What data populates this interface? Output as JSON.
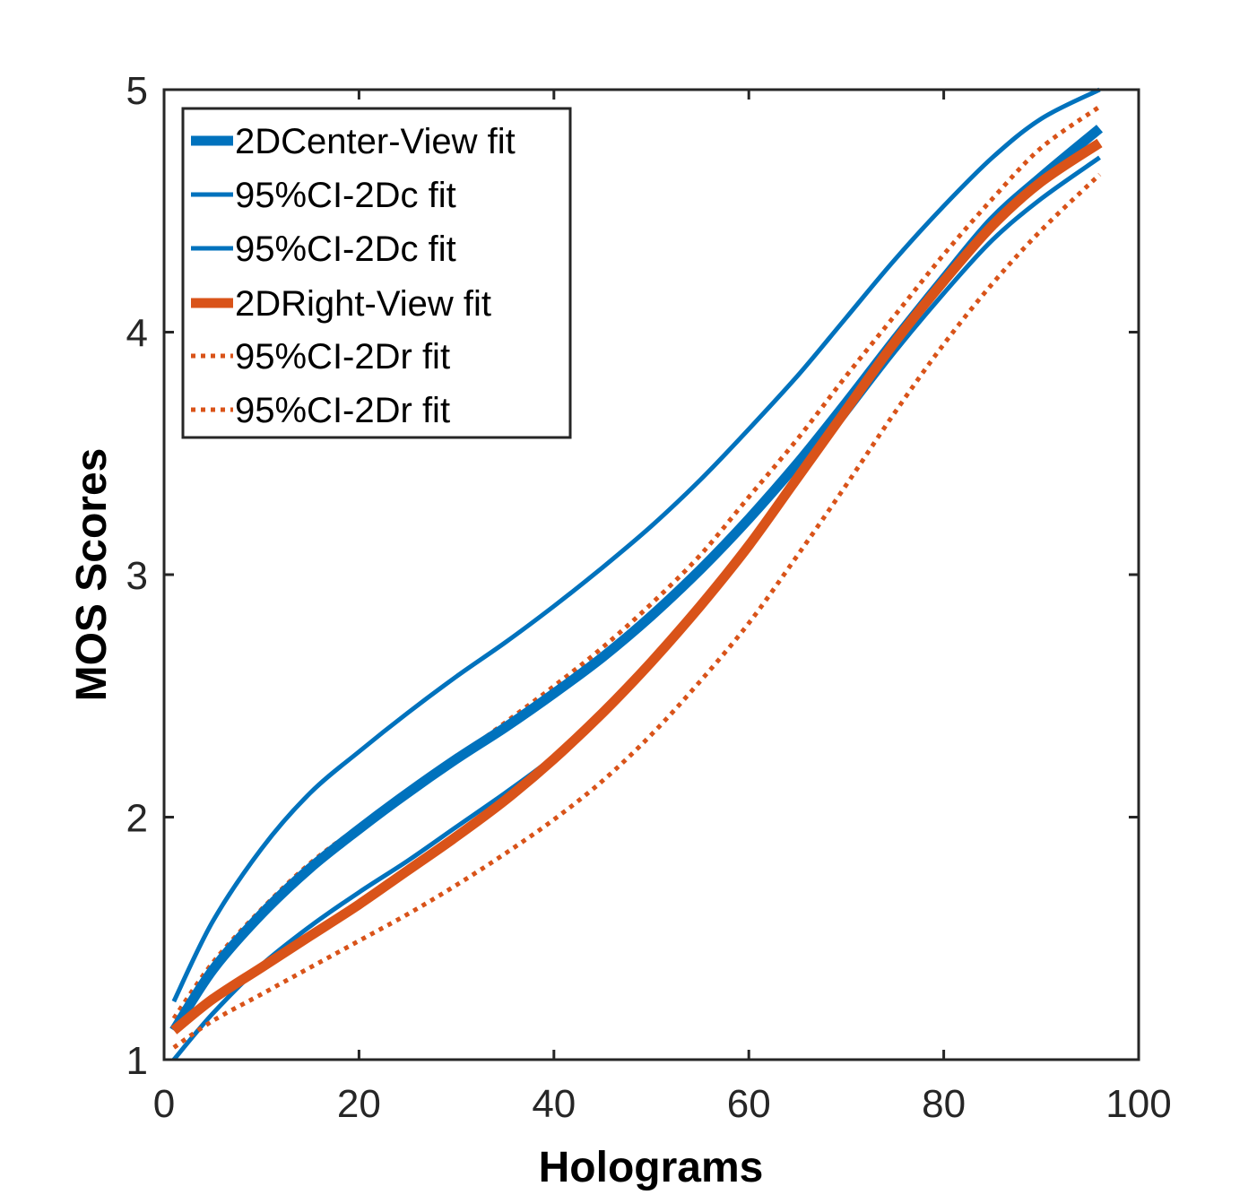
{
  "chart_data": {
    "type": "line",
    "title": "",
    "xlabel": "Holograms",
    "ylabel": "MOS Scores",
    "xlim": [
      0,
      100
    ],
    "ylim": [
      1,
      5
    ],
    "xticks": [
      0,
      20,
      40,
      60,
      80,
      100
    ],
    "yticks": [
      1,
      2,
      3,
      4,
      5
    ],
    "grid": false,
    "legend_position": "top-left",
    "series": [
      {
        "name": "2DCenter-View fit",
        "color": "#0072BD",
        "style": "solid-thick",
        "x": [
          1,
          5,
          10,
          15,
          20,
          25,
          30,
          35,
          40,
          45,
          50,
          55,
          60,
          65,
          70,
          75,
          80,
          85,
          90,
          96
        ],
        "y": [
          1.12,
          1.37,
          1.6,
          1.79,
          1.95,
          2.1,
          2.24,
          2.37,
          2.51,
          2.66,
          2.83,
          3.02,
          3.23,
          3.46,
          3.71,
          3.97,
          4.22,
          4.46,
          4.64,
          4.84
        ]
      },
      {
        "name": "95%CI-2Dc fit",
        "color": "#0072BD",
        "style": "solid-thin",
        "x": [
          1,
          5,
          10,
          15,
          20,
          25,
          30,
          35,
          40,
          45,
          50,
          55,
          60,
          65,
          70,
          75,
          80,
          85,
          90,
          96
        ],
        "y": [
          1.24,
          1.57,
          1.87,
          2.1,
          2.27,
          2.43,
          2.58,
          2.72,
          2.87,
          3.03,
          3.2,
          3.39,
          3.6,
          3.82,
          4.06,
          4.3,
          4.52,
          4.72,
          4.88,
          5.0
        ]
      },
      {
        "name": "95%CI-2Dc fit",
        "color": "#0072BD",
        "style": "solid-thin",
        "x": [
          1,
          5,
          10,
          15,
          20,
          25,
          30,
          35,
          40,
          45,
          50,
          55,
          60,
          65,
          70,
          75,
          80,
          85,
          90,
          96
        ],
        "y": [
          1.0,
          1.19,
          1.39,
          1.55,
          1.69,
          1.82,
          1.96,
          2.1,
          2.25,
          2.43,
          2.64,
          2.88,
          3.13,
          3.4,
          3.66,
          3.92,
          4.16,
          4.38,
          4.55,
          4.72
        ]
      },
      {
        "name": "2DRight-View fit",
        "color": "#D95319",
        "style": "solid-thick",
        "x": [
          1,
          5,
          10,
          15,
          20,
          25,
          30,
          35,
          40,
          45,
          50,
          55,
          60,
          65,
          70,
          75,
          80,
          85,
          90,
          96
        ],
        "y": [
          1.12,
          1.25,
          1.38,
          1.51,
          1.64,
          1.78,
          1.92,
          2.07,
          2.24,
          2.43,
          2.64,
          2.87,
          3.12,
          3.4,
          3.68,
          3.96,
          4.21,
          4.44,
          4.62,
          4.78
        ]
      },
      {
        "name": "95%CI-2Dr fit",
        "color": "#D95319",
        "style": "dotted",
        "x": [
          1,
          5,
          10,
          15,
          20,
          25,
          30,
          35,
          40,
          45,
          50,
          55,
          60,
          65,
          70,
          75,
          80,
          85,
          90,
          96
        ],
        "y": [
          1.17,
          1.4,
          1.62,
          1.81,
          1.96,
          2.1,
          2.24,
          2.39,
          2.54,
          2.7,
          2.88,
          3.08,
          3.32,
          3.56,
          3.82,
          4.07,
          4.32,
          4.55,
          4.76,
          4.93
        ]
      },
      {
        "name": "95%CI-2Dr fit",
        "color": "#D95319",
        "style": "dotted",
        "x": [
          1,
          5,
          10,
          15,
          20,
          25,
          30,
          35,
          40,
          45,
          50,
          55,
          60,
          65,
          70,
          75,
          80,
          85,
          90,
          96
        ],
        "y": [
          1.05,
          1.16,
          1.27,
          1.38,
          1.49,
          1.6,
          1.72,
          1.85,
          1.99,
          2.15,
          2.34,
          2.56,
          2.8,
          3.08,
          3.37,
          3.67,
          3.95,
          4.2,
          4.42,
          4.65
        ]
      }
    ]
  }
}
